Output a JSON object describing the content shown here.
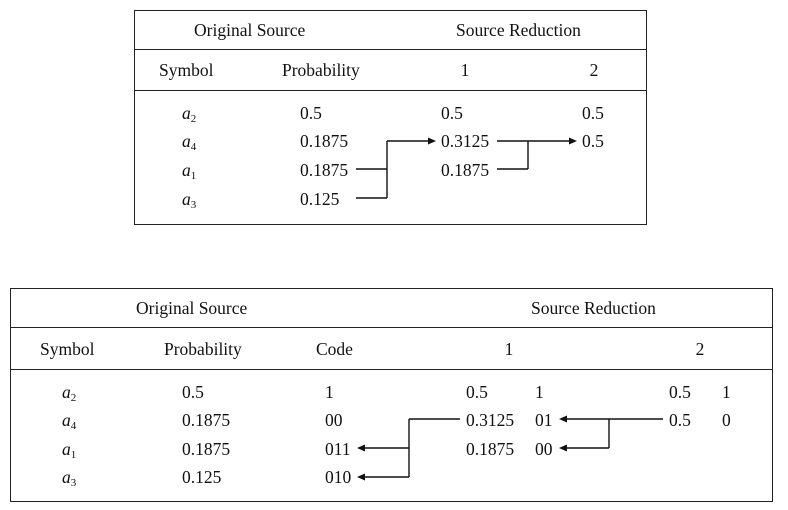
{
  "table1": {
    "header": {
      "original_source": "Original Source",
      "source_reduction": "Source Reduction",
      "symbol": "Symbol",
      "probability": "Probability",
      "step1": "1",
      "step2": "2"
    },
    "rows": [
      {
        "symbol": "a",
        "sub": "2",
        "probability": "0.5",
        "r1": "0.5",
        "r2": "0.5"
      },
      {
        "symbol": "a",
        "sub": "4",
        "probability": "0.1875",
        "r1": "0.3125",
        "r2": "0.5"
      },
      {
        "symbol": "a",
        "sub": "1",
        "probability": "0.1875",
        "r1": "0.1875",
        "r2": ""
      },
      {
        "symbol": "a",
        "sub": "3",
        "probability": "0.125",
        "r1": "",
        "r2": ""
      }
    ]
  },
  "table2": {
    "header": {
      "original_source": "Original Source",
      "source_reduction": "Source Reduction",
      "symbol": "Symbol",
      "probability": "Probability",
      "code": "Code",
      "step1": "1",
      "step2": "2"
    },
    "rows": [
      {
        "symbol": "a",
        "sub": "2",
        "probability": "0.5",
        "code": "1",
        "r1_prob": "0.5",
        "r1_code": "1",
        "r2_prob": "0.5",
        "r2_code": "1"
      },
      {
        "symbol": "a",
        "sub": "4",
        "probability": "0.1875",
        "code": "00",
        "r1_prob": "0.3125",
        "r1_code": "01",
        "r2_prob": "0.5",
        "r2_code": "0"
      },
      {
        "symbol": "a",
        "sub": "1",
        "probability": "0.1875",
        "code": "011",
        "r1_prob": "0.1875",
        "r1_code": "00",
        "r2_prob": "",
        "r2_code": ""
      },
      {
        "symbol": "a",
        "sub": "3",
        "probability": "0.125",
        "code": "010",
        "r1_prob": "",
        "r1_code": "",
        "r2_prob": "",
        "r2_code": ""
      }
    ]
  }
}
